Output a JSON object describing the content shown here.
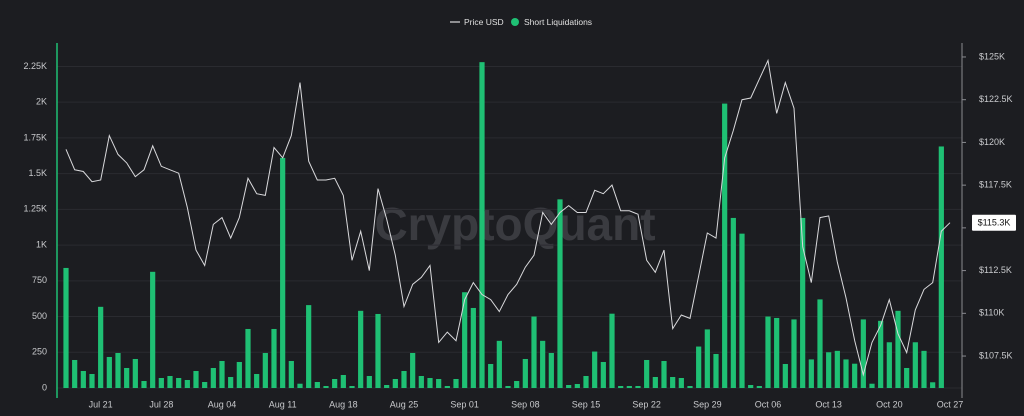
{
  "chart_data": {
    "type": "bar-line",
    "watermark": "CryptoQuant",
    "categories": [
      null,
      null,
      null,
      null,
      "Jul 21",
      null,
      null,
      null,
      null,
      null,
      null,
      "Jul 28",
      null,
      null,
      null,
      null,
      null,
      null,
      "Aug 04",
      null,
      null,
      null,
      null,
      null,
      null,
      "Aug 11",
      null,
      null,
      null,
      null,
      null,
      null,
      "Aug 18",
      null,
      null,
      null,
      null,
      null,
      null,
      "Aug 25",
      null,
      null,
      null,
      null,
      null,
      null,
      "Sep 01",
      null,
      null,
      null,
      null,
      null,
      null,
      "Sep 08",
      null,
      null,
      null,
      null,
      null,
      null,
      "Sep 15",
      null,
      null,
      null,
      null,
      null,
      null,
      "Sep 22",
      null,
      null,
      null,
      null,
      null,
      null,
      "Sep 29",
      null,
      null,
      null,
      null,
      null,
      null,
      "Oct 06",
      null,
      null,
      null,
      null,
      null,
      null,
      "Oct 13",
      null,
      null,
      null,
      null,
      null,
      null,
      "Oct 20",
      null,
      null,
      null,
      null,
      null,
      null,
      "Oct 27"
    ],
    "series": [
      {
        "name": "Price USD",
        "kind": "line",
        "axis": "y2",
        "color": "#d9d9dc",
        "values": [
          119600,
          118400,
          118300,
          117700,
          117800,
          120400,
          119300,
          118800,
          118000,
          118400,
          119800,
          118600,
          118400,
          118200,
          116200,
          113700,
          112800,
          115200,
          115600,
          114400,
          115600,
          117900,
          117000,
          116900,
          119700,
          119100,
          120400,
          123500,
          118900,
          117800,
          117800,
          117900,
          116900,
          113100,
          114800,
          112500,
          117300,
          115500,
          113400,
          110400,
          111700,
          112100,
          112800,
          108300,
          108900,
          108400,
          110800,
          111800,
          111100,
          110800,
          110100,
          111100,
          111700,
          112700,
          113400,
          115900,
          115200,
          115900,
          116300,
          115900,
          115900,
          117200,
          117000,
          117500,
          116000,
          116000,
          115800,
          113100,
          112400,
          113700,
          109100,
          109900,
          109700,
          112200,
          114700,
          114400,
          119100,
          120700,
          122500,
          122600,
          123700,
          124800,
          121700,
          123500,
          122000,
          113900,
          111800,
          115600,
          115700,
          113000,
          110900,
          108400,
          106400,
          108300,
          109300,
          110800,
          108800,
          107700,
          110200,
          111400,
          111800,
          114800,
          115300
        ]
      },
      {
        "name": "Short Liquidations",
        "kind": "bar",
        "color": "#1fc074",
        "values": [
          840,
          196,
          119,
          98,
          568,
          217,
          245,
          140,
          203,
          49,
          813,
          70,
          84,
          70,
          56,
          119,
          42,
          140,
          189,
          77,
          182,
          413,
          98,
          245,
          413,
          1610,
          189,
          30,
          580,
          42,
          14,
          63,
          91,
          14,
          540,
          84,
          518,
          21,
          63,
          119,
          245,
          84,
          70,
          63,
          14,
          63,
          670,
          560,
          2280,
          168,
          330,
          14,
          49,
          203,
          500,
          330,
          245,
          1320,
          21,
          28,
          84,
          255,
          182,
          520,
          14,
          14,
          14,
          196,
          77,
          189,
          77,
          70,
          14,
          290,
          410,
          238,
          1990,
          1190,
          1080,
          21,
          14,
          500,
          490,
          168,
          480,
          1190,
          200,
          620,
          250,
          260,
          200,
          170,
          480,
          30,
          470,
          320,
          540,
          140,
          320,
          260,
          40,
          1690,
          null
        ]
      }
    ],
    "ylim": [
      0,
      2400
    ],
    "yticks": [
      0,
      250,
      500,
      750,
      {
        "value": 1000,
        "label": "1K"
      },
      {
        "value": 1250,
        "label": "1.25K"
      },
      {
        "value": 1500,
        "label": "1.5K"
      },
      {
        "value": 1750,
        "label": "1.75K"
      },
      {
        "value": 2000,
        "label": "2K"
      },
      {
        "value": 2250,
        "label": "2.25K"
      }
    ],
    "y2lim": [
      105630,
      125700
    ],
    "y2ticks": [
      {
        "value": 107500,
        "label": "$107.5K"
      },
      {
        "value": 110000,
        "label": "$110K"
      },
      {
        "value": 112500,
        "label": "$112.5K"
      },
      {
        "value": 115000,
        "label": "$115K"
      },
      {
        "value": 117500,
        "label": "$117.5K"
      },
      {
        "value": 120000,
        "label": "$120K"
      },
      {
        "value": 122500,
        "label": "$122.5K"
      },
      {
        "value": 125000,
        "label": "$125K"
      }
    ],
    "y2_marker": {
      "value": 115300,
      "label": "$115.3K"
    },
    "grid": true,
    "legend": "top"
  }
}
